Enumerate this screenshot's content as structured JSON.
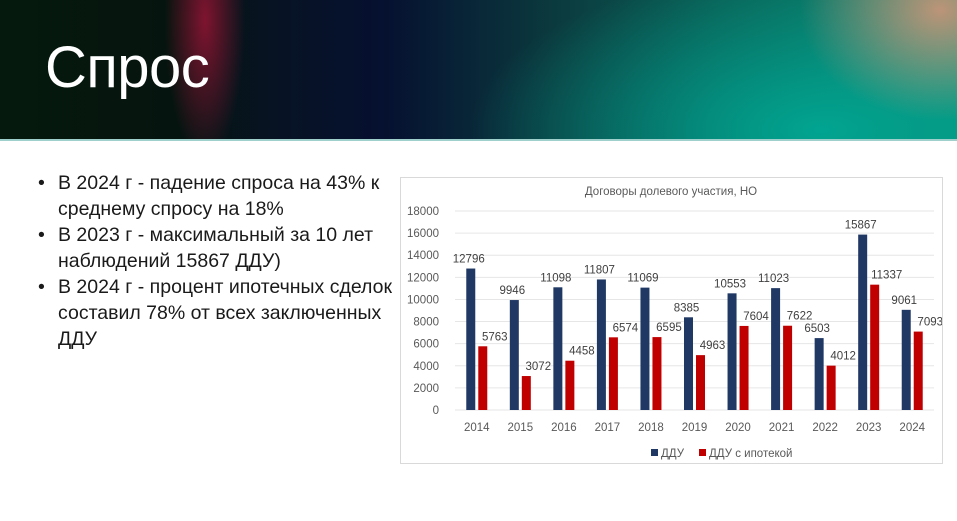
{
  "slide": {
    "title": "Спрос",
    "bullets": [
      "В 2024 г - падение спроса на 43% к среднему спросу на 18%",
      "В 2023 г -  максимальный за 10 лет наблюдений 15867 ДДУ)",
      "В 2024 г - процент ипотечных сделок составил  78% от всех заключенных ДДУ"
    ],
    "bullet_glyph": "•"
  },
  "colors": {
    "series_ddu": "#1f3864",
    "series_mortgage": "#c00000",
    "grid": "#e6e6e6",
    "text": "#595959"
  },
  "chart_data": {
    "type": "bar",
    "title": "Договоры долевого участия, НО",
    "categories": [
      "2014",
      "2015",
      "2016",
      "2017",
      "2018",
      "2019",
      "2020",
      "2021",
      "2022",
      "2023",
      "2024"
    ],
    "series": [
      {
        "name": "ДДУ",
        "color": "#1f3864",
        "values": [
          12796,
          9946,
          11098,
          11807,
          11069,
          8385,
          10553,
          11023,
          6503,
          15867,
          9061
        ]
      },
      {
        "name": "ДДУ с ипотекой",
        "color": "#c00000",
        "values": [
          5763,
          3072,
          4458,
          6574,
          6595,
          4963,
          7604,
          7622,
          4012,
          11337,
          7093
        ]
      }
    ],
    "xlabel": "",
    "ylabel": "",
    "ylim": [
      0,
      18000
    ],
    "yticks": [
      0,
      2000,
      4000,
      6000,
      8000,
      10000,
      12000,
      14000,
      16000,
      18000
    ],
    "grid": true,
    "legend_position": "bottom",
    "data_labels": true
  }
}
